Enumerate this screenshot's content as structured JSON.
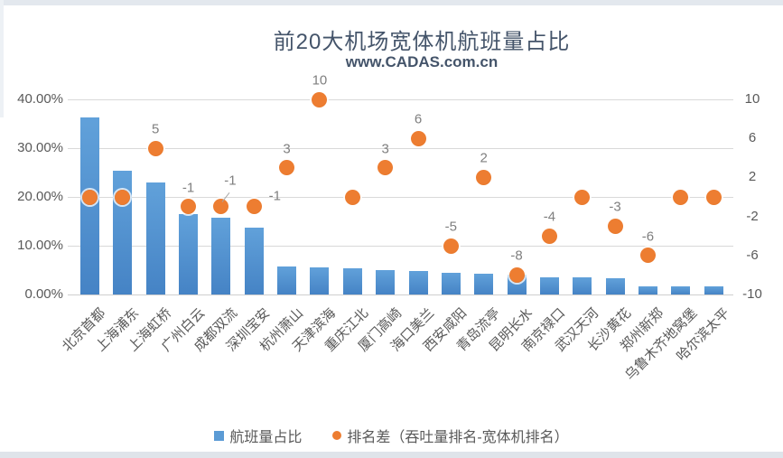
{
  "chart_data": {
    "type": "combo-bar-scatter",
    "title": "前20大机场宽体机航班量占比",
    "subtitle": "www.CADAS.com.cn",
    "categories": [
      "北京首都",
      "上海浦东",
      "上海虹桥",
      "广州白云",
      "成都双流",
      "深圳宝安",
      "杭州萧山",
      "天津滨海",
      "重庆江北",
      "厦门高崎",
      "海口美兰",
      "西安咸阳",
      "青岛流亭",
      "昆明长水",
      "南京禄口",
      "武汉天河",
      "长沙黄花",
      "郑州新郑",
      "乌鲁木齐地窝堡",
      "哈尔滨太平"
    ],
    "series": [
      {
        "name": "航班量占比",
        "type": "bar",
        "axis": "left",
        "unit": "%",
        "values": [
          36.3,
          25.4,
          23.0,
          16.4,
          15.8,
          13.7,
          5.8,
          5.6,
          5.4,
          5.0,
          4.8,
          4.4,
          4.2,
          4.0,
          3.6,
          3.5,
          3.3,
          1.7,
          1.6,
          1.7
        ]
      },
      {
        "name": "排名差（吞吐量排名-宽体机排名）",
        "type": "scatter",
        "axis": "right",
        "values": [
          0,
          0,
          5,
          -1,
          -1,
          -1,
          3,
          10,
          0,
          3,
          6,
          -5,
          2,
          -8,
          -4,
          0,
          -3,
          -6,
          0,
          0
        ],
        "point_labels": [
          "",
          "",
          "5",
          "-1",
          "-1",
          "-1",
          "3",
          "10",
          "",
          "3",
          "6",
          "-5",
          "2",
          "-8",
          "-4",
          "",
          "-3",
          "-6",
          "",
          ""
        ]
      }
    ],
    "left_axis": {
      "tick_labels": [
        "40.00%",
        "30.00%",
        "20.00%",
        "10.00%",
        "0.00%"
      ],
      "tick_values": [
        40,
        30,
        20,
        10,
        0
      ],
      "min": 0,
      "max": 40
    },
    "right_axis": {
      "tick_labels": [
        "10",
        "6",
        "2",
        "-2",
        "-6",
        "-10"
      ],
      "tick_values": [
        10,
        6,
        2,
        -2,
        -6,
        -10
      ],
      "min": -10,
      "max": 10
    },
    "grid": "horizontal",
    "legend_position": "bottom",
    "colors": {
      "bar": "#5B9BD5",
      "bar_gradient_top": "#61A1DA",
      "bar_gradient_bottom": "#4583C5",
      "marker": "#ED7D31",
      "gridline": "#D9D9D9",
      "axis_text": "#595959",
      "point_label_text": "#7F7F7F",
      "title_text": "#44546A"
    }
  }
}
